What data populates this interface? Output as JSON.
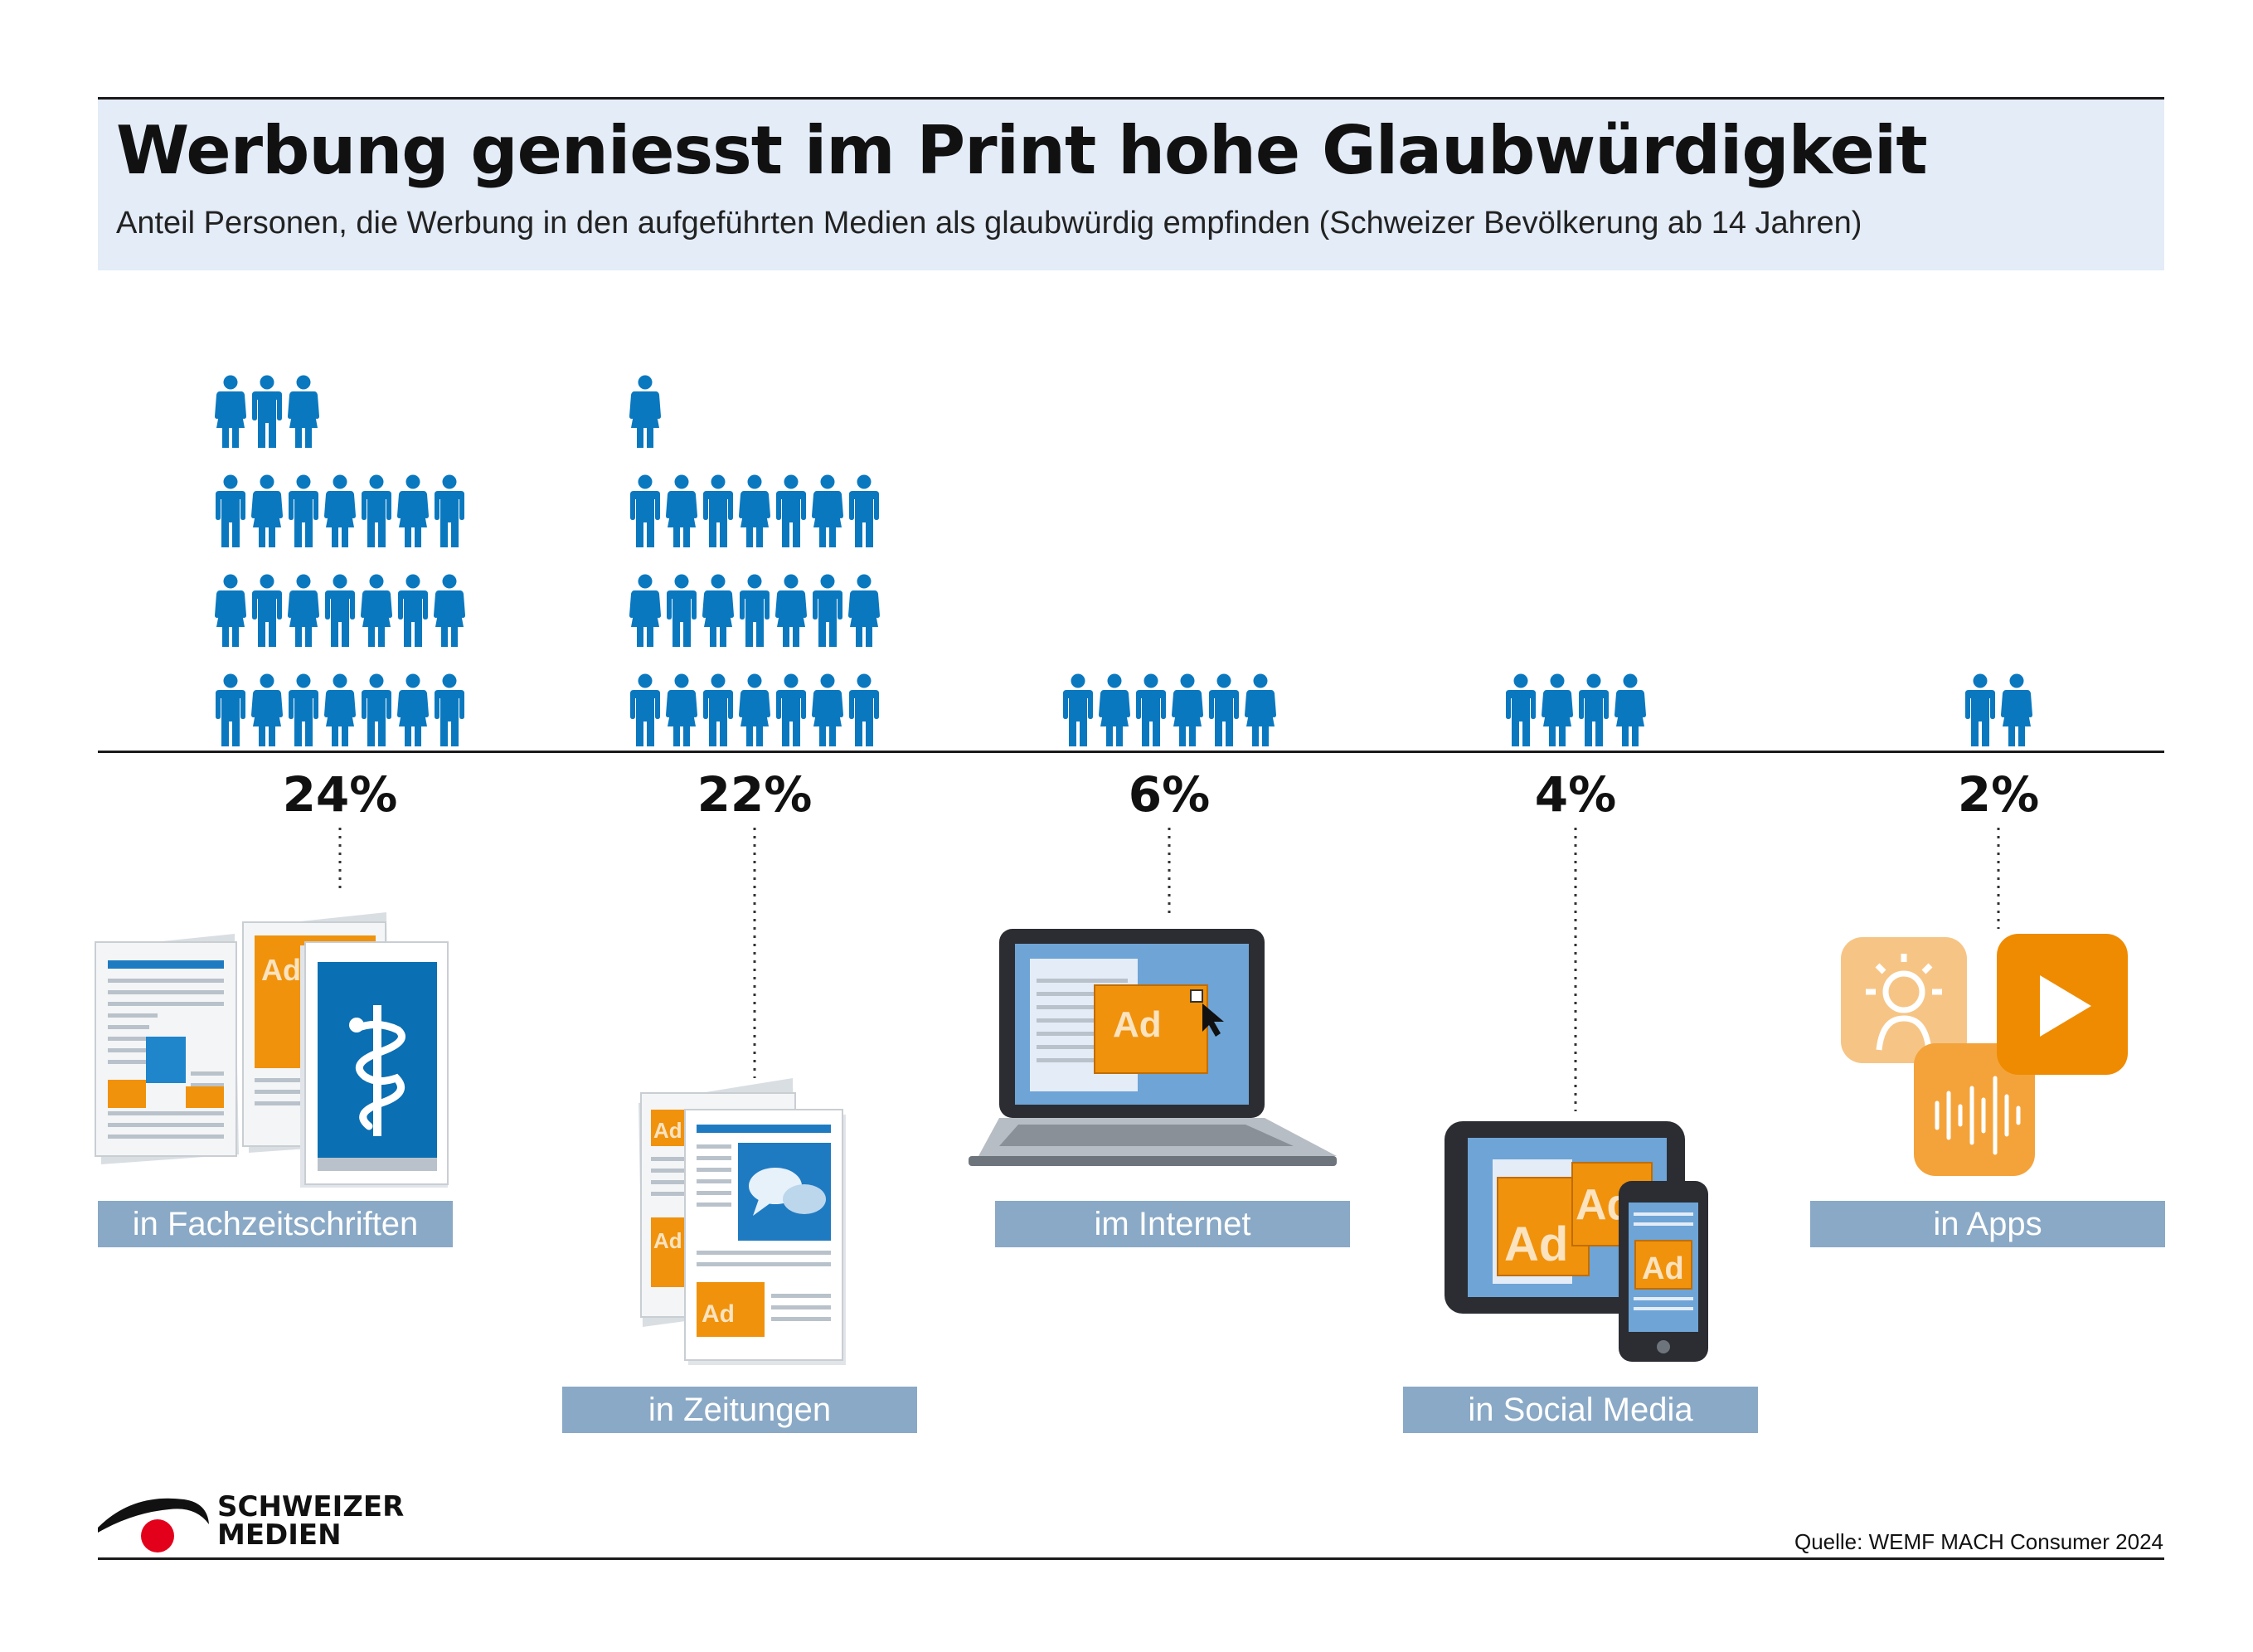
{
  "header": {
    "title": "Werbung geniesst im Print hohe Glaubwürdigkeit",
    "subtitle": "Anteil Personen, die Werbung in den aufgeführten Medien als glaubwürdig empfinden (Schweizer Bevölkerung ab 14 Jahren)"
  },
  "chart_data": {
    "type": "bar",
    "unit": "%",
    "categories": [
      "in Fachzeitschriften",
      "in Zeitungen",
      "im Internet",
      "in Social Media",
      "in Apps"
    ],
    "values": [
      24,
      22,
      6,
      4,
      2
    ],
    "value_labels": [
      "24%",
      "22%",
      "6%",
      "4%",
      "2%"
    ],
    "figures_per_percent": 1,
    "icon_color": "#0a78bf"
  },
  "icons": [
    "magazine-icon",
    "newspaper-icon",
    "laptop-icon",
    "tablet-phone-icon",
    "apps-icon"
  ],
  "colors": {
    "accent_blue": "#0a78bf",
    "accent_orange": "#f0920c",
    "label_box": "#8aa9c6",
    "header_bg": "#e3ecf7",
    "logo_red": "#e3001b"
  },
  "icon_text": {
    "ad": "Ad"
  },
  "footer": {
    "logo_line1": "SCHWEIZER",
    "logo_line2": "MEDIEN",
    "source": "Quelle: WEMF MACH Consumer 2024"
  }
}
